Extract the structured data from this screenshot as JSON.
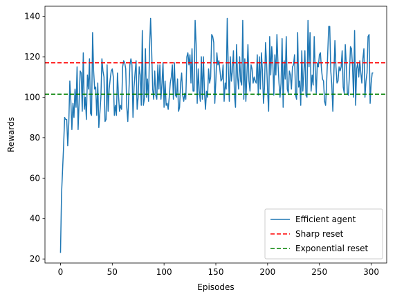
{
  "chart_data": {
    "type": "line",
    "title": "",
    "xlabel": "Episodes",
    "ylabel": "Rewards",
    "xlim": [
      -15,
      315
    ],
    "ylim": [
      18,
      145
    ],
    "xticks": [
      0,
      50,
      100,
      150,
      200,
      250,
      300
    ],
    "yticks": [
      20,
      40,
      60,
      80,
      100,
      120,
      140
    ],
    "grid": false,
    "legend_position": "lower-right",
    "series": [
      {
        "name": "Efficient agent",
        "kind": "line",
        "color": "#1f77b4",
        "x_start": 0,
        "x_step": 1,
        "y": [
          23,
          52,
          64,
          76,
          90,
          89,
          89,
          76,
          87,
          108,
          98,
          84,
          97,
          90,
          104,
          95,
          115,
          84,
          98,
          113,
          112,
          93,
          122,
          94,
          100,
          89,
          111,
          104,
          119,
          92,
          91,
          132,
          113,
          104,
          105,
          91,
          107,
          85,
          92,
          100,
          119,
          113,
          110,
          88,
          89,
          116,
          93,
          104,
          109,
          113,
          114,
          110,
          91,
          96,
          91,
          112,
          101,
          93,
          96,
          94,
          115,
          118,
          117,
          114,
          95,
          88,
          102,
          116,
          119,
          116,
          90,
          105,
          112,
          118,
          94,
          100,
          115,
          111,
          96,
          133,
          96,
          99,
          124,
          100,
          109,
          98,
          124,
          139,
          124,
          104,
          99,
          113,
          101,
          99,
          116,
          104,
          116,
          99,
          107,
          117,
          95,
          108,
          96,
          97,
          94,
          100,
          107,
          110,
          116,
          99,
          117,
          101,
          100,
          109,
          93,
          95,
          107,
          112,
          101,
          98,
          102,
          99,
          120,
          122,
          116,
          121,
          107,
          124,
          103,
          103,
          138,
          126,
          97,
          114,
          103,
          98,
          120,
          99,
          120,
          103,
          94,
          103,
          100,
          114,
          107,
          110,
          131,
          130,
          127,
          97,
          108,
          122,
          116,
          118,
          113,
          108,
          109,
          116,
          98,
          107,
          104,
          139,
          115,
          98,
          120,
          108,
          113,
          123,
          101,
          95,
          126,
          110,
          104,
          120,
          108,
          106,
          138,
          99,
          119,
          98,
          111,
          126,
          108,
          103,
          116,
          114,
          107,
          110,
          108,
          107,
          121,
          101,
          120,
          104,
          122,
          113,
          97,
          105,
          127,
          117,
          103,
          93,
          130,
          111,
          125,
          118,
          101,
          121,
          111,
          131,
          117,
          107,
          100,
          107,
          129,
          95,
          118,
          109,
          130,
          104,
          102,
          113,
          111,
          104,
          115,
          116,
          121,
          101,
          99,
          132,
          105,
          108,
          96,
          123,
          103,
          112,
          123,
          101,
          100,
          138,
          115,
          132,
          103,
          111,
          106,
          130,
          113,
          102,
          117,
          115,
          121,
          122,
          114,
          109,
          108,
          98,
          96,
          107,
          121,
          135,
          135,
          113,
          106,
          93,
          112,
          128,
          115,
          107,
          108,
          115,
          113,
          115,
          123,
          105,
          102,
          126,
          116,
          102,
          101,
          111,
          125,
          124,
          115,
          100,
          133,
          96,
          114,
          117,
          110,
          118,
          112,
          107,
          119,
          124,
          100,
          108,
          112,
          130,
          131,
          97,
          107,
          112,
          112
        ]
      },
      {
        "name": "Sharp reset",
        "kind": "hline",
        "color": "#ff0000",
        "value": 117
      },
      {
        "name": "Exponential reset",
        "kind": "hline",
        "color": "#008000",
        "value": 101.5
      }
    ]
  }
}
